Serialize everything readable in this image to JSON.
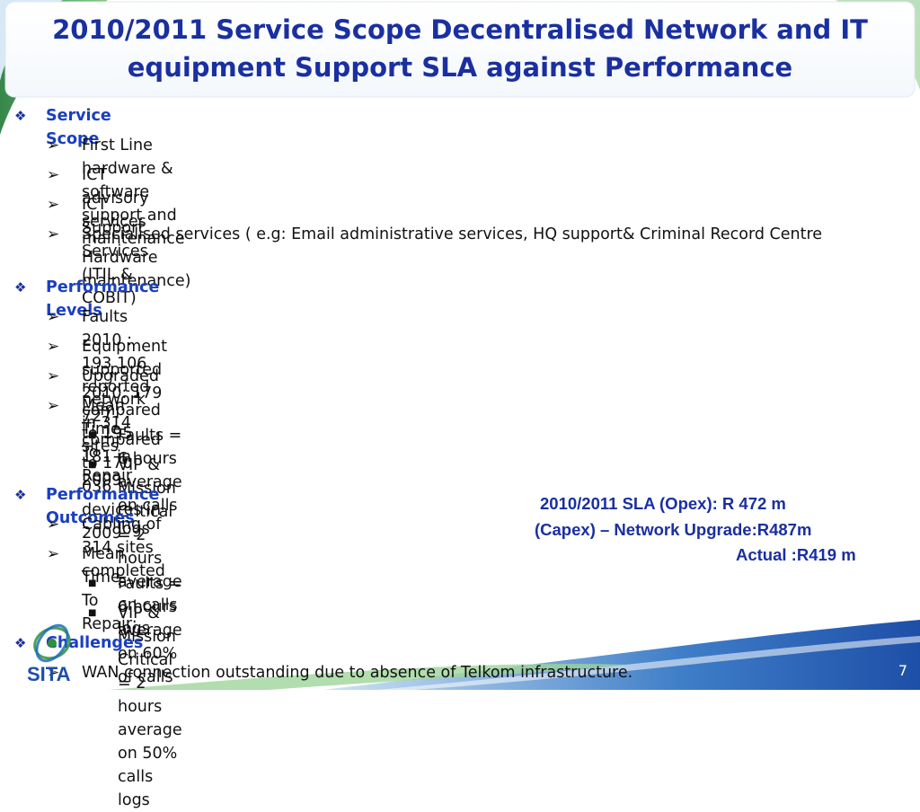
{
  "slide": {
    "title_line1": "2010/2011 Service Scope Decentralised Network and IT",
    "title_line2": "equipment Support SLA against Performance",
    "page_number": "7",
    "colors": {
      "title": "#1a2fa0",
      "heading": "#1a3fc0",
      "accent_green": "#2f8f3a",
      "footer_blue": "#1e4fa8"
    }
  },
  "bullets": [
    {
      "level": 1,
      "marker": "❖",
      "text": "Service Scope"
    },
    {
      "level": 2,
      "marker": "➢",
      "text": "First Line hardware & software support and maintenance"
    },
    {
      "level": 2,
      "marker": "➢",
      "text": "ICT advisory services"
    },
    {
      "level": 2,
      "marker": "➢",
      "text": "ICT  Support Services (ITIL & COBIT)"
    },
    {
      "level": 2,
      "marker": "➢",
      "text": "Specialised services ( e.g: Email administrative services, HQ support& Criminal Record  Centre"
    },
    {
      "level": 2,
      "marker": "",
      "text": "Hardware maintenance)"
    },
    {
      "level": 1,
      "marker": "❖",
      "text": "Performance Levels"
    },
    {
      "level": 2,
      "marker": "➢",
      "text": "Faults 2010 : 193 106 reported compared to 195 181 in 2009"
    },
    {
      "level": 2,
      "marker": "➢",
      "text": "Equipment supported 2010:  179 727 compared to 170 036 devices in 2009"
    },
    {
      "level": 2,
      "marker": "➢",
      "text": "Upgraded  network in 314 sites"
    },
    {
      "level": 2,
      "marker": "➢",
      "text": "Mean Time To Repair"
    },
    {
      "level": 3,
      "marker": "■",
      "text": "Faults  = 6 hours average on calls logs"
    },
    {
      "level": 3,
      "marker": "■",
      "text": "VIP & Mission Critical  = 2 hours average  on calls logs"
    },
    {
      "level": 1,
      "marker": "❖",
      "text": "Performance Outcomes"
    },
    {
      "level": 2,
      "marker": "➢",
      "text": "Cabling of 314 sites completed"
    },
    {
      "level": 2,
      "marker": "➢",
      "text": "Mean Time To Repair:"
    },
    {
      "level": 3,
      "marker": "■",
      "text": "Faults = 6 hours average  on 60% of calls"
    },
    {
      "level": 3,
      "marker": "■",
      "text": "VIP & Mission Critical = 2 hours average on 50% calls logs"
    },
    {
      "level": 1,
      "marker": "❖",
      "text": "Challenges"
    },
    {
      "level": 2,
      "marker": "➢",
      "text": "WAN  connection outstanding due to absence of Telkom infrastructure."
    }
  ],
  "sla_box": {
    "line1": "2010/2011 SLA  (Opex):      R 472 m",
    "line2": "(Capex) – Network Upgrade:R487m",
    "line3": "Actual :R419 m"
  },
  "logo": {
    "icon": "sita-logo-icon",
    "text": "SITA"
  }
}
